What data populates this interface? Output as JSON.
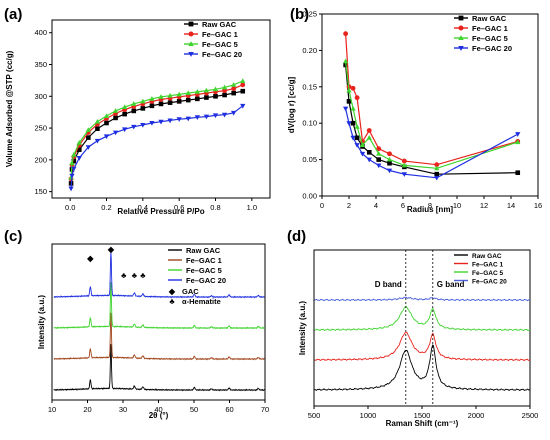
{
  "chart_data": [
    {
      "id": "a",
      "panel_label": "(a)",
      "type": "line",
      "xlabel": "Relative Pressure P/Po",
      "ylabel": "Volume Adsorbed @STP (cc/g)",
      "xlim": [
        -0.1,
        1.1
      ],
      "ylim": [
        140,
        420
      ],
      "xticks": [
        0.0,
        0.2,
        0.4,
        0.6,
        0.8,
        1.0
      ],
      "xtick_labels": [
        "0.0",
        "0.2",
        "0.4",
        "0.6",
        "0.8",
        "1.0"
      ],
      "yticks": [
        150,
        200,
        250,
        300,
        350,
        400
      ],
      "ytick_labels": [
        "150",
        "200",
        "250",
        "300",
        "350",
        "400"
      ],
      "legend_position": "top-right",
      "series": [
        {
          "name": "Raw GAC",
          "color": "#000000",
          "marker": "square",
          "x": [
            0.005,
            0.01,
            0.02,
            0.05,
            0.1,
            0.15,
            0.2,
            0.25,
            0.3,
            0.35,
            0.4,
            0.45,
            0.5,
            0.55,
            0.6,
            0.65,
            0.7,
            0.75,
            0.8,
            0.85,
            0.9,
            0.95
          ],
          "y": [
            163,
            185,
            198,
            216,
            235,
            249,
            258,
            266,
            272,
            277,
            281,
            285,
            288,
            290,
            292,
            294,
            296,
            298,
            300,
            302,
            305,
            308
          ]
        },
        {
          "name": "Fe–GAC 1",
          "color": "#e8231d",
          "marker": "circle",
          "x": [
            0.005,
            0.01,
            0.02,
            0.05,
            0.1,
            0.15,
            0.2,
            0.25,
            0.3,
            0.35,
            0.4,
            0.45,
            0.5,
            0.55,
            0.6,
            0.65,
            0.7,
            0.75,
            0.8,
            0.85,
            0.9,
            0.95
          ],
          "y": [
            170,
            192,
            205,
            223,
            243,
            256,
            265,
            273,
            279,
            284,
            288,
            292,
            295,
            297,
            299,
            301,
            303,
            305,
            307,
            309,
            312,
            318
          ]
        },
        {
          "name": "Fe–GAC 5",
          "color": "#3fd42e",
          "marker": "triangle-up",
          "x": [
            0.005,
            0.01,
            0.02,
            0.05,
            0.1,
            0.15,
            0.2,
            0.25,
            0.3,
            0.35,
            0.4,
            0.45,
            0.5,
            0.55,
            0.6,
            0.65,
            0.7,
            0.75,
            0.8,
            0.85,
            0.9,
            0.95
          ],
          "y": [
            172,
            195,
            208,
            227,
            247,
            260,
            269,
            277,
            283,
            288,
            292,
            296,
            299,
            301,
            303,
            305,
            307,
            309,
            311,
            314,
            318,
            324
          ]
        },
        {
          "name": "Fe–GAC 20",
          "color": "#1f2fe0",
          "marker": "triangle-down",
          "x": [
            0.005,
            0.01,
            0.02,
            0.05,
            0.1,
            0.15,
            0.2,
            0.25,
            0.3,
            0.35,
            0.4,
            0.45,
            0.5,
            0.55,
            0.6,
            0.65,
            0.7,
            0.75,
            0.8,
            0.85,
            0.9,
            0.95
          ],
          "y": [
            155,
            175,
            186,
            203,
            220,
            230,
            237,
            243,
            248,
            252,
            255,
            258,
            260,
            262,
            264,
            265,
            267,
            268,
            270,
            271,
            274,
            285
          ]
        }
      ]
    },
    {
      "id": "b",
      "panel_label": "(b)",
      "type": "line",
      "xlabel": "Radius [nm]",
      "ylabel": "dV(log r) [cc/g]",
      "xlim": [
        0,
        16
      ],
      "ylim": [
        0.0,
        0.25
      ],
      "xticks": [
        0,
        2,
        4,
        6,
        8,
        10,
        12,
        14,
        16
      ],
      "xtick_labels": [
        "0",
        "2",
        "4",
        "6",
        "8",
        "10",
        "12",
        "14",
        "16"
      ],
      "yticks": [
        0.0,
        0.05,
        0.1,
        0.15,
        0.2,
        0.25
      ],
      "ytick_labels": [
        "0.00",
        "0.05",
        "0.10",
        "0.15",
        "0.20",
        "0.25"
      ],
      "legend_position": "top-right",
      "series": [
        {
          "name": "Raw GAC",
          "color": "#000000",
          "marker": "square",
          "x": [
            1.75,
            2.0,
            2.3,
            2.6,
            3.0,
            3.5,
            4.2,
            5.0,
            6.1,
            8.5,
            14.5
          ],
          "y": [
            0.18,
            0.13,
            0.1,
            0.08,
            0.068,
            0.06,
            0.05,
            0.045,
            0.04,
            0.03,
            0.032
          ]
        },
        {
          "name": "Fe–GAC 1",
          "color": "#e8231d",
          "marker": "circle",
          "x": [
            1.75,
            2.0,
            2.3,
            2.6,
            3.0,
            3.5,
            4.2,
            5.0,
            6.1,
            8.5,
            14.5
          ],
          "y": [
            0.223,
            0.15,
            0.148,
            0.135,
            0.075,
            0.09,
            0.065,
            0.058,
            0.048,
            0.043,
            0.075
          ]
        },
        {
          "name": "Fe–GAC 5",
          "color": "#3fd42e",
          "marker": "triangle-up",
          "x": [
            1.75,
            2.0,
            2.3,
            2.6,
            3.0,
            3.5,
            4.2,
            5.0,
            6.1,
            8.5,
            14.5
          ],
          "y": [
            0.185,
            0.145,
            0.12,
            0.095,
            0.07,
            0.08,
            0.058,
            0.05,
            0.042,
            0.038,
            0.074
          ]
        },
        {
          "name": "Fe–GAC 20",
          "color": "#1f2fe0",
          "marker": "triangle-down",
          "x": [
            1.75,
            2.0,
            2.3,
            2.6,
            3.0,
            3.5,
            4.2,
            5.0,
            6.1,
            8.5,
            14.5
          ],
          "y": [
            0.12,
            0.1,
            0.08,
            0.07,
            0.058,
            0.05,
            0.042,
            0.035,
            0.03,
            0.025,
            0.085
          ]
        }
      ]
    },
    {
      "id": "c",
      "panel_label": "(c)",
      "type": "line",
      "xlabel": "2θ (°)",
      "ylabel": "Intensity (a.u.)",
      "xlim": [
        10,
        70
      ],
      "xticks": [
        10,
        20,
        30,
        40,
        50,
        60,
        70
      ],
      "xtick_labels": [
        "10",
        "20",
        "30",
        "40",
        "50",
        "60",
        "70"
      ],
      "y_ticks_shown": false,
      "legend_position": "top-right",
      "series": [
        {
          "name": "Raw GAC",
          "color": "#000000",
          "offset": 0.0
        },
        {
          "name": "Fe–GAC 1",
          "color": "#a0461c",
          "offset": 1.0
        },
        {
          "name": "Fe–GAC 5",
          "color": "#3fd42e",
          "offset": 2.0
        },
        {
          "name": "Fe–GAC 20",
          "color": "#1f2fe0",
          "offset": 3.0
        }
      ],
      "peaks": [
        {
          "position": 20.8,
          "height": 0.35,
          "width": 0.25
        },
        {
          "position": 26.6,
          "height": 1.7,
          "width": 0.22
        },
        {
          "position": 33.2,
          "height": 0.12,
          "width": 0.3
        },
        {
          "position": 35.6,
          "height": 0.1,
          "width": 0.3
        },
        {
          "position": 50.1,
          "height": 0.1,
          "width": 0.3
        },
        {
          "position": 54.9,
          "height": 0.05,
          "width": 0.3
        },
        {
          "position": 59.9,
          "height": 0.08,
          "width": 0.3
        },
        {
          "position": 68.1,
          "height": 0.06,
          "width": 0.3
        }
      ],
      "markers": [
        {
          "symbol": "◆",
          "x": 20.8,
          "kind": "GAC"
        },
        {
          "symbol": "◆",
          "x": 26.6,
          "kind": "GAC"
        },
        {
          "symbol": "♣",
          "x": 30.2,
          "kind": "α-Hematite"
        },
        {
          "symbol": "♣",
          "x": 33.2,
          "kind": "α-Hematite"
        },
        {
          "symbol": "♣",
          "x": 35.6,
          "kind": "α-Hematite"
        }
      ],
      "symbol_legend": [
        {
          "symbol": "◆",
          "label": "GAC"
        },
        {
          "symbol": "♣",
          "label": "α-Hematite"
        }
      ]
    },
    {
      "id": "d",
      "panel_label": "(d)",
      "type": "line",
      "xlabel": "Raman Shift (cm⁻¹)",
      "ylabel": "Intensity (a.u.)",
      "xlim": [
        500,
        2500
      ],
      "xticks": [
        500,
        1000,
        1500,
        2000,
        2500
      ],
      "xtick_labels": [
        "500",
        "1000",
        "1500",
        "2000",
        "2500"
      ],
      "y_ticks_shown": false,
      "legend_position": "top-right",
      "series": [
        {
          "name": "Raw GAC",
          "color": "#000000",
          "offset": 0.0,
          "d_height": 1.3,
          "g_height": 1.4
        },
        {
          "name": "Fe–GAC 1",
          "color": "#e8231d",
          "offset": 1.0,
          "d_height": 0.9,
          "g_height": 0.8
        },
        {
          "name": "Fe–GAC 5",
          "color": "#3fd42e",
          "offset": 2.0,
          "d_height": 0.75,
          "g_height": 0.65
        },
        {
          "name": "Fe–GAC 20",
          "color": "#4a5fd8",
          "offset": 3.0,
          "d_height": 0.08,
          "g_height": 0.07
        }
      ],
      "bands": [
        {
          "label": "D band",
          "position": 1350
        },
        {
          "label": "G band",
          "position": 1600
        }
      ]
    }
  ]
}
